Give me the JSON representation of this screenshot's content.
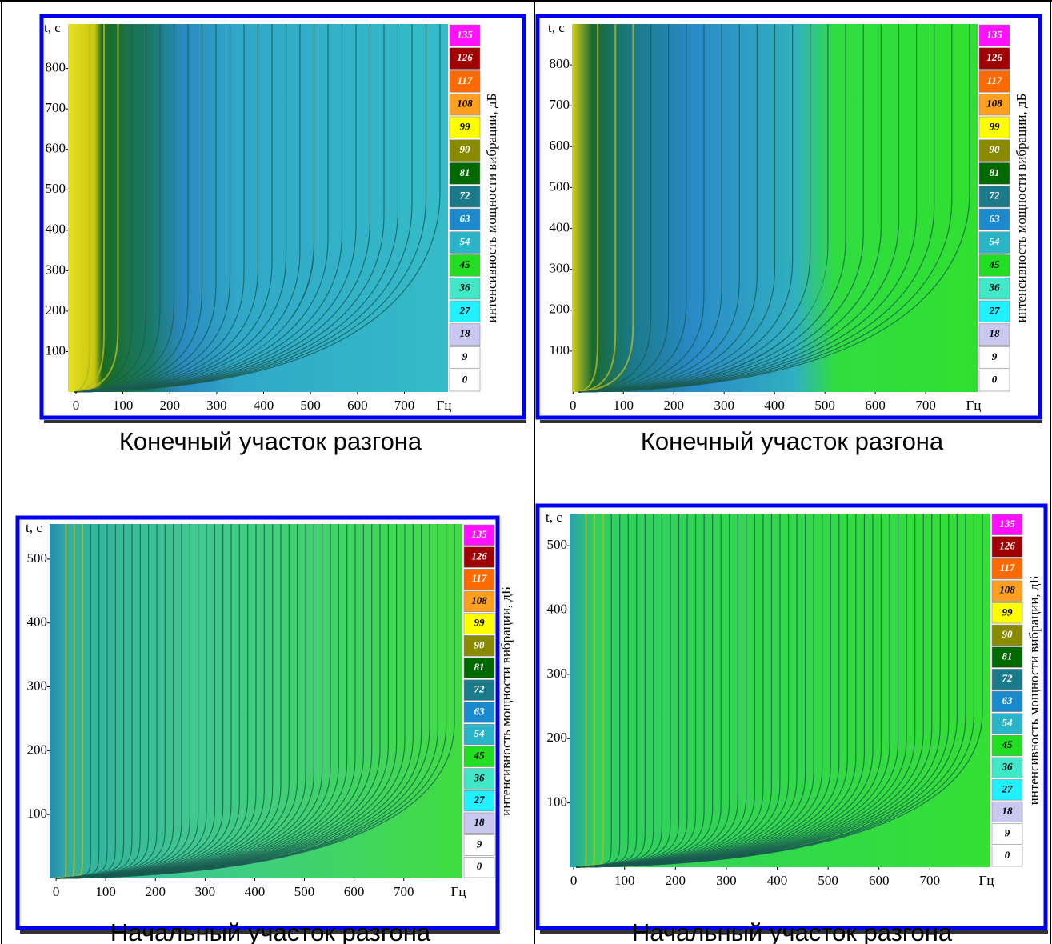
{
  "chart_data": [
    {
      "type": "spectrogram",
      "y_label": "t, с",
      "x_unit": "Гц",
      "caption": "Конечный участок разгона",
      "xlim": [
        -17,
        793
      ],
      "xticks": [
        0,
        100,
        200,
        300,
        400,
        500,
        600,
        700
      ],
      "ylim": [
        0,
        910
      ],
      "yticks": [
        100,
        200,
        300,
        400,
        500,
        600,
        700,
        800
      ],
      "colorbar_label": "интенсивность мощности вибрации, дБ",
      "levels": [
        135,
        126,
        117,
        108,
        99,
        90,
        81,
        72,
        63,
        54,
        45,
        36,
        27,
        18,
        9,
        0
      ],
      "colors": [
        "#ff10ff",
        "#a00000",
        "#ff6a00",
        "#ffa020",
        "#ffff00",
        "#8a8a00",
        "#006a00",
        "#1a7a8a",
        "#1a8acd",
        "#2ab4c8",
        "#22dd22",
        "#40e8c8",
        "#20f0ff",
        "#c8c8f0",
        "#ffffff",
        "#ffffff"
      ]
    },
    {
      "type": "spectrogram",
      "y_label": "t, с",
      "x_unit": "Гц",
      "caption": "Конечный участок разгона",
      "xlim": [
        -2,
        803
      ],
      "xticks": [
        0,
        100,
        200,
        300,
        400,
        500,
        600,
        700
      ],
      "ylim": [
        0,
        900
      ],
      "yticks": [
        100,
        200,
        300,
        400,
        500,
        600,
        700,
        800
      ],
      "colorbar_label": "интенсивность мощности вибрации, дБ",
      "levels": [
        135,
        126,
        117,
        108,
        99,
        90,
        81,
        72,
        63,
        54,
        45,
        36,
        27,
        18,
        9,
        0
      ],
      "colors": [
        "#ff10ff",
        "#a00000",
        "#ff6a00",
        "#ffa020",
        "#ffff00",
        "#8a8a00",
        "#006a00",
        "#1a7a8a",
        "#1a8acd",
        "#2ab4c8",
        "#22dd22",
        "#40e8c8",
        "#20f0ff",
        "#c8c8f0",
        "#ffffff",
        "#ffffff"
      ]
    },
    {
      "type": "spectrogram",
      "y_label": "t, с",
      "x_unit": "Гц",
      "caption": "Начальный участок разгона",
      "xlim": [
        -13,
        818
      ],
      "xticks": [
        0,
        100,
        200,
        300,
        400,
        500,
        600,
        700
      ],
      "ylim": [
        0,
        555
      ],
      "yticks": [
        100,
        200,
        300,
        400,
        500
      ],
      "colorbar_label": "интенсивность мощности вибрации, дБ",
      "levels": [
        135,
        126,
        117,
        108,
        99,
        90,
        81,
        72,
        63,
        54,
        45,
        36,
        27,
        18,
        9,
        0
      ],
      "colors": [
        "#ff10ff",
        "#a00000",
        "#ff6a00",
        "#ffa020",
        "#ffff00",
        "#8a8a00",
        "#006a00",
        "#1a7a8a",
        "#1a8acd",
        "#2ab4c8",
        "#22dd22",
        "#40e8c8",
        "#20f0ff",
        "#c8c8f0",
        "#ffffff",
        "#ffffff"
      ]
    },
    {
      "type": "spectrogram",
      "y_label": "t, с",
      "x_unit": "Гц",
      "caption": "Начальный участок разгона",
      "xlim": [
        -8,
        819
      ],
      "xticks": [
        0,
        100,
        200,
        300,
        400,
        500,
        600,
        700
      ],
      "ylim": [
        0,
        550
      ],
      "yticks": [
        100,
        200,
        300,
        400,
        500
      ],
      "colorbar_label": "интенсивность мощности вибрации, дБ",
      "levels": [
        135,
        126,
        117,
        108,
        99,
        90,
        81,
        72,
        63,
        54,
        45,
        36,
        27,
        18,
        9,
        0
      ],
      "colors": [
        "#ff10ff",
        "#a00000",
        "#ff6a00",
        "#ffa020",
        "#ffff00",
        "#8a8a00",
        "#006a00",
        "#1a7a8a",
        "#1a8acd",
        "#2ab4c8",
        "#22dd22",
        "#40e8c8",
        "#20f0ff",
        "#c8c8f0",
        "#ffffff",
        "#ffffff"
      ]
    }
  ]
}
